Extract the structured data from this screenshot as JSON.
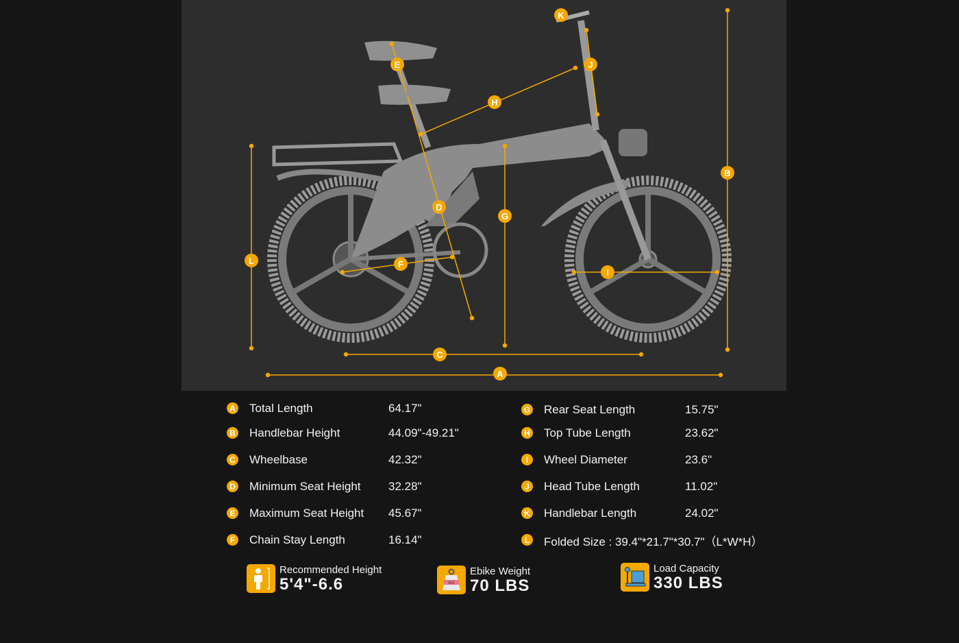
{
  "accent_color": "#f5a800",
  "diagram": {
    "markers": [
      "A",
      "B",
      "C",
      "D",
      "E",
      "F",
      "G",
      "H",
      "I",
      "J",
      "K",
      "L"
    ]
  },
  "specs_left": [
    {
      "letter": "A",
      "label": "Total Length",
      "value": "64.17\""
    },
    {
      "letter": "B",
      "label": "Handlebar Height",
      "value": "44.09\"-49.21\""
    },
    {
      "letter": "C",
      "label": "Wheelbase",
      "value": "42.32\""
    },
    {
      "letter": "D",
      "label": "Minimum Seat Height",
      "value": "32.28\""
    },
    {
      "letter": "E",
      "label": "Maximum Seat Height",
      "value": "45.67\""
    },
    {
      "letter": "F",
      "label": "Chain Stay Length",
      "value": "16.14\""
    }
  ],
  "specs_right": [
    {
      "letter": "G",
      "label": "Rear Seat Length",
      "value": "15.75\""
    },
    {
      "letter": "H",
      "label": "Top Tube Length",
      "value": "23.62\""
    },
    {
      "letter": "I",
      "label": "Wheel Diameter",
      "value": "23.6\""
    },
    {
      "letter": "J",
      "label": "Head Tube Length",
      "value": "11.02\""
    },
    {
      "letter": "K",
      "label": "Handlebar Length",
      "value": "24.02\""
    },
    {
      "letter": "L",
      "label": "Folded Size : 39.4\"*21.7\"*30.7\"（L*W*H）",
      "value": ""
    }
  ],
  "features": [
    {
      "icon": "person-height-icon",
      "title": "Recommended Height",
      "value": "5'4\"-6.6"
    },
    {
      "icon": "weight-kg-icon",
      "title": "Ebike Weight",
      "value": "70 LBS"
    },
    {
      "icon": "scale-box-icon",
      "title": "Load Capacity",
      "value": "330 LBS"
    }
  ]
}
